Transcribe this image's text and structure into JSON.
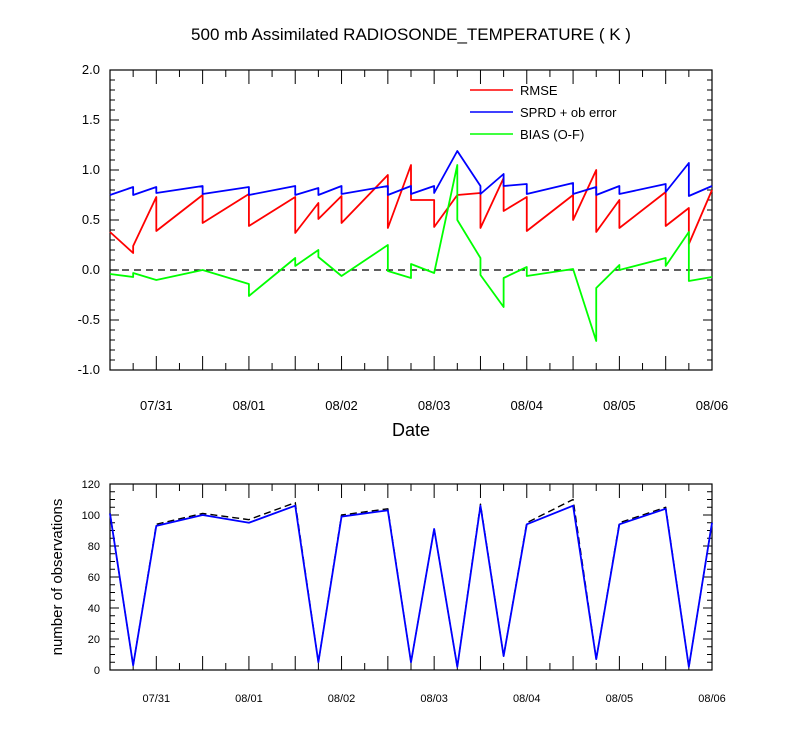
{
  "chart_data": [
    {
      "type": "line",
      "title": "500 mb Assimilated RADIOSONDE_TEMPERATURE ( K )",
      "xlabel": "Date",
      "ylabel": "",
      "ylim": [
        -1.0,
        2.0
      ],
      "y_ticks": [
        "-1.0",
        "-0.5",
        "0.0",
        "0.5",
        "1.0",
        "1.5",
        "2.0"
      ],
      "x_ticks": [
        "07/31",
        "08/01",
        "08/02",
        "08/03",
        "08/04",
        "08/05",
        "08/06"
      ],
      "x_range_days": [
        "07/30 12:00",
        "08/06 00:00"
      ],
      "reference_line": 0.0,
      "legend_position": "top-right",
      "series": [
        {
          "name": "RMSE",
          "color": "#ff0000",
          "points": [
            [
              "07/30 12:00",
              0.38
            ],
            [
              "07/30 18:00",
              0.17
            ],
            [
              "07/30 18:00",
              0.24
            ],
            [
              "07/31 00:00",
              0.73
            ],
            [
              "07/31 00:00",
              0.39
            ],
            [
              "07/31 12:00",
              0.75
            ],
            [
              "07/31 12:00",
              0.47
            ],
            [
              "08/01 00:00",
              0.76
            ],
            [
              "08/01 00:00",
              0.44
            ],
            [
              "08/01 12:00",
              0.73
            ],
            [
              "08/01 12:00",
              0.37
            ],
            [
              "08/01 18:00",
              0.67
            ],
            [
              "08/01 18:00",
              0.51
            ],
            [
              "08/02 00:00",
              0.74
            ],
            [
              "08/02 00:00",
              0.47
            ],
            [
              "08/02 12:00",
              0.95
            ],
            [
              "08/02 12:00",
              0.42
            ],
            [
              "08/02 18:00",
              1.05
            ],
            [
              "08/02 18:00",
              0.7
            ],
            [
              "08/03 00:00",
              0.7
            ],
            [
              "08/03 00:00",
              0.43
            ],
            [
              "08/03 06:00",
              0.75
            ],
            [
              "08/03 12:00",
              0.77
            ],
            [
              "08/03 12:00",
              0.42
            ],
            [
              "08/03 18:00",
              0.92
            ],
            [
              "08/03 18:00",
              0.59
            ],
            [
              "08/04 00:00",
              0.73
            ],
            [
              "08/04 00:00",
              0.39
            ],
            [
              "08/04 12:00",
              0.75
            ],
            [
              "08/04 12:00",
              0.5
            ],
            [
              "08/04 18:00",
              1.0
            ],
            [
              "08/04 18:00",
              0.38
            ],
            [
              "08/05 00:00",
              0.7
            ],
            [
              "08/05 00:00",
              0.42
            ],
            [
              "08/05 12:00",
              0.78
            ],
            [
              "08/05 12:00",
              0.44
            ],
            [
              "08/05 18:00",
              0.62
            ],
            [
              "08/05 18:00",
              0.26
            ],
            [
              "08/06 00:00",
              0.8
            ]
          ]
        },
        {
          "name": "SPRD + ob error",
          "color": "#0000ff",
          "points": [
            [
              "07/30 12:00",
              0.75
            ],
            [
              "07/30 18:00",
              0.83
            ],
            [
              "07/30 18:00",
              0.75
            ],
            [
              "07/31 00:00",
              0.83
            ],
            [
              "07/31 00:00",
              0.77
            ],
            [
              "07/31 12:00",
              0.84
            ],
            [
              "07/31 12:00",
              0.76
            ],
            [
              "08/01 00:00",
              0.83
            ],
            [
              "08/01 00:00",
              0.75
            ],
            [
              "08/01 12:00",
              0.84
            ],
            [
              "08/01 12:00",
              0.75
            ],
            [
              "08/01 18:00",
              0.82
            ],
            [
              "08/01 18:00",
              0.75
            ],
            [
              "08/02 00:00",
              0.84
            ],
            [
              "08/02 00:00",
              0.76
            ],
            [
              "08/02 12:00",
              0.84
            ],
            [
              "08/02 12:00",
              0.75
            ],
            [
              "08/02 18:00",
              0.84
            ],
            [
              "08/02 18:00",
              0.76
            ],
            [
              "08/03 00:00",
              0.84
            ],
            [
              "08/03 00:00",
              0.77
            ],
            [
              "08/03 06:00",
              1.19
            ],
            [
              "08/03 12:00",
              0.84
            ],
            [
              "08/03 12:00",
              0.76
            ],
            [
              "08/03 18:00",
              0.96
            ],
            [
              "08/03 18:00",
              0.84
            ],
            [
              "08/04 00:00",
              0.86
            ],
            [
              "08/04 00:00",
              0.76
            ],
            [
              "08/04 12:00",
              0.87
            ],
            [
              "08/04 12:00",
              0.76
            ],
            [
              "08/04 18:00",
              0.83
            ],
            [
              "08/04 18:00",
              0.75
            ],
            [
              "08/05 00:00",
              0.84
            ],
            [
              "08/05 00:00",
              0.76
            ],
            [
              "08/05 12:00",
              0.86
            ],
            [
              "08/05 12:00",
              0.78
            ],
            [
              "08/05 18:00",
              1.07
            ],
            [
              "08/05 18:00",
              0.74
            ],
            [
              "08/06 00:00",
              0.84
            ]
          ]
        },
        {
          "name": "BIAS (O-F)",
          "color": "#00ff00",
          "points": [
            [
              "07/30 12:00",
              -0.04
            ],
            [
              "07/30 18:00",
              -0.07
            ],
            [
              "07/30 18:00",
              -0.03
            ],
            [
              "07/31 00:00",
              -0.1
            ],
            [
              "07/31 12:00",
              0.0
            ],
            [
              "08/01 00:00",
              -0.14
            ],
            [
              "08/01 00:00",
              -0.26
            ],
            [
              "08/01 12:00",
              0.12
            ],
            [
              "08/01 12:00",
              0.04
            ],
            [
              "08/01 18:00",
              0.2
            ],
            [
              "08/01 18:00",
              0.13
            ],
            [
              "08/02 00:00",
              -0.06
            ],
            [
              "08/02 12:00",
              0.25
            ],
            [
              "08/02 12:00",
              -0.01
            ],
            [
              "08/02 18:00",
              -0.08
            ],
            [
              "08/02 18:00",
              0.06
            ],
            [
              "08/03 00:00",
              -0.03
            ],
            [
              "08/03 06:00",
              1.05
            ],
            [
              "08/03 06:00",
              0.5
            ],
            [
              "08/03 12:00",
              0.12
            ],
            [
              "08/03 12:00",
              -0.05
            ],
            [
              "08/03 18:00",
              -0.37
            ],
            [
              "08/03 18:00",
              -0.08
            ],
            [
              "08/04 00:00",
              0.03
            ],
            [
              "08/04 00:00",
              -0.06
            ],
            [
              "08/04 12:00",
              0.01
            ],
            [
              "08/04 18:00",
              -0.71
            ],
            [
              "08/04 18:00",
              -0.18
            ],
            [
              "08/05 00:00",
              0.05
            ],
            [
              "08/05 00:00",
              0.0
            ],
            [
              "08/05 12:00",
              0.12
            ],
            [
              "08/05 12:00",
              0.04
            ],
            [
              "08/05 18:00",
              0.38
            ],
            [
              "08/05 18:00",
              -0.11
            ],
            [
              "08/06 00:00",
              -0.07
            ]
          ]
        }
      ]
    },
    {
      "type": "line",
      "title": "",
      "xlabel": "",
      "ylabel": "number of observations",
      "ylim": [
        0,
        120
      ],
      "y_ticks": [
        "0",
        "20",
        "40",
        "60",
        "80",
        "100",
        "120"
      ],
      "x_ticks": [
        "07/31",
        "08/01",
        "08/02",
        "08/03",
        "08/04",
        "08/05",
        "08/06"
      ],
      "x_range_days": [
        "07/30 12:00",
        "08/06 00:00"
      ],
      "series": [
        {
          "color": "#000000",
          "dashed": true,
          "points": [
            [
              "07/30 12:00",
              101
            ],
            [
              "07/30 18:00",
              3
            ],
            [
              "07/31 00:00",
              94
            ],
            [
              "07/31 12:00",
              101
            ],
            [
              "08/01 00:00",
              97
            ],
            [
              "08/01 12:00",
              108
            ],
            [
              "08/01 18:00",
              5
            ],
            [
              "08/02 00:00",
              100
            ],
            [
              "08/02 12:00",
              104
            ],
            [
              "08/02 18:00",
              5
            ],
            [
              "08/03 00:00",
              91
            ],
            [
              "08/03 06:00",
              2
            ],
            [
              "08/03 12:00",
              107
            ],
            [
              "08/03 18:00",
              9
            ],
            [
              "08/04 00:00",
              95
            ],
            [
              "08/04 12:00",
              110
            ],
            [
              "08/04 18:00",
              7
            ],
            [
              "08/05 00:00",
              95
            ],
            [
              "08/05 12:00",
              105
            ],
            [
              "08/05 18:00",
              2
            ],
            [
              "08/06 00:00",
              95
            ]
          ]
        },
        {
          "color": "#0000ff",
          "dashed": false,
          "points": [
            [
              "07/30 12:00",
              101
            ],
            [
              "07/30 18:00",
              3
            ],
            [
              "07/31 00:00",
              93
            ],
            [
              "07/31 12:00",
              100
            ],
            [
              "08/01 00:00",
              95
            ],
            [
              "08/01 12:00",
              106
            ],
            [
              "08/01 18:00",
              5
            ],
            [
              "08/02 00:00",
              99
            ],
            [
              "08/02 12:00",
              103
            ],
            [
              "08/02 18:00",
              5
            ],
            [
              "08/03 00:00",
              91
            ],
            [
              "08/03 06:00",
              2
            ],
            [
              "08/03 12:00",
              106
            ],
            [
              "08/03 18:00",
              9
            ],
            [
              "08/04 00:00",
              94
            ],
            [
              "08/04 12:00",
              106
            ],
            [
              "08/04 18:00",
              7
            ],
            [
              "08/05 00:00",
              94
            ],
            [
              "08/05 12:00",
              104
            ],
            [
              "08/05 18:00",
              2
            ],
            [
              "08/06 00:00",
              95
            ]
          ]
        }
      ]
    }
  ]
}
